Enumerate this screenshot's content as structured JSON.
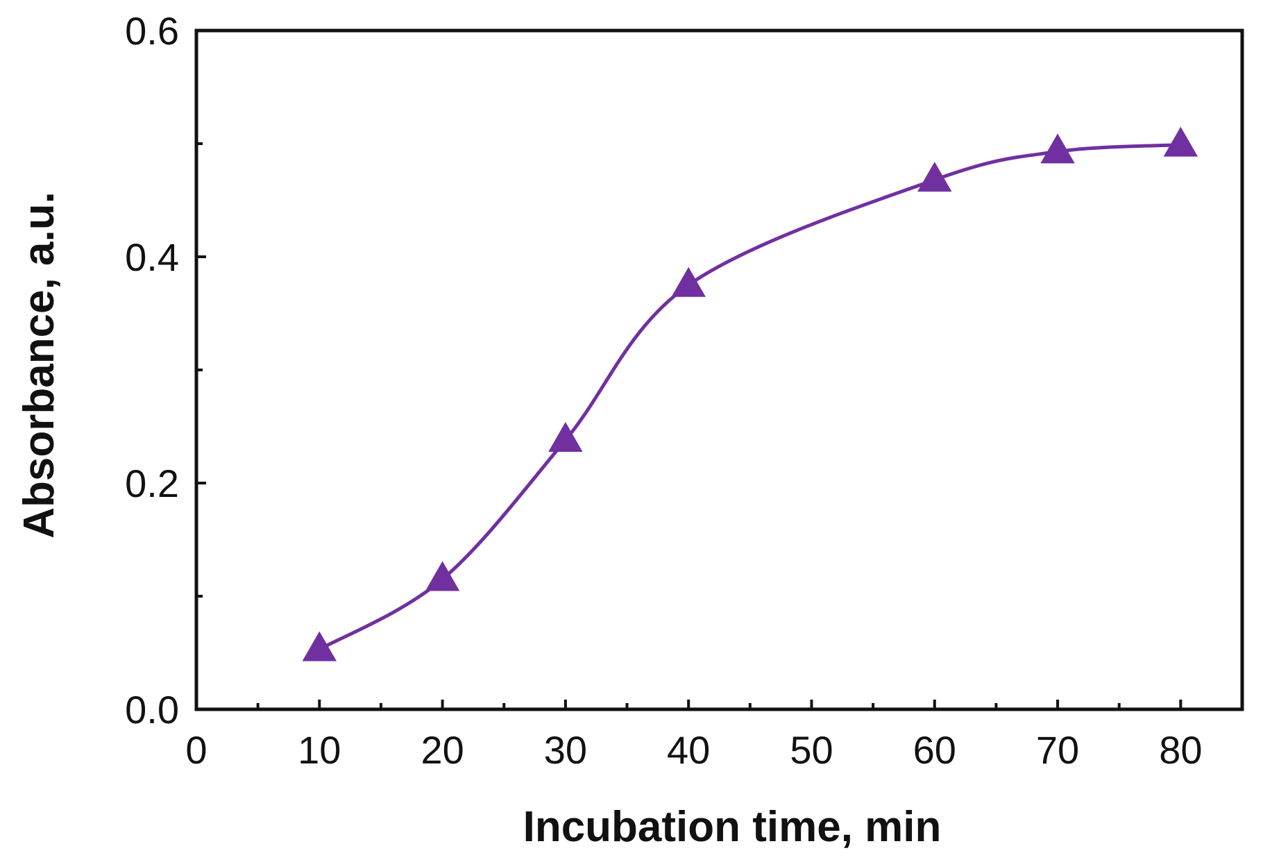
{
  "chart_data": {
    "type": "line",
    "title": "",
    "xlabel": "Incubation time, min",
    "ylabel": "Absorbance, a.u.",
    "xlim": [
      0,
      85
    ],
    "ylim": [
      0,
      0.6
    ],
    "x_ticks": [
      0,
      10,
      20,
      30,
      40,
      50,
      60,
      70,
      80
    ],
    "x_tick_labels": [
      "0",
      "10",
      "20",
      "30",
      "40",
      "50",
      "60",
      "70",
      "80"
    ],
    "x_minor_step": 5,
    "y_ticks": [
      0,
      0.2,
      0.4,
      0.6
    ],
    "y_tick_labels": [
      "0.0",
      "0.2",
      "0.4",
      "0.6"
    ],
    "y_minor_step": 0.1,
    "grid": false,
    "series": [
      {
        "name": "Absorbance",
        "marker": "triangle",
        "color": "#7030A0",
        "x": [
          10,
          20,
          30,
          40,
          60,
          70,
          80
        ],
        "y": [
          0.053,
          0.115,
          0.238,
          0.375,
          0.468,
          0.493,
          0.499
        ]
      }
    ]
  }
}
